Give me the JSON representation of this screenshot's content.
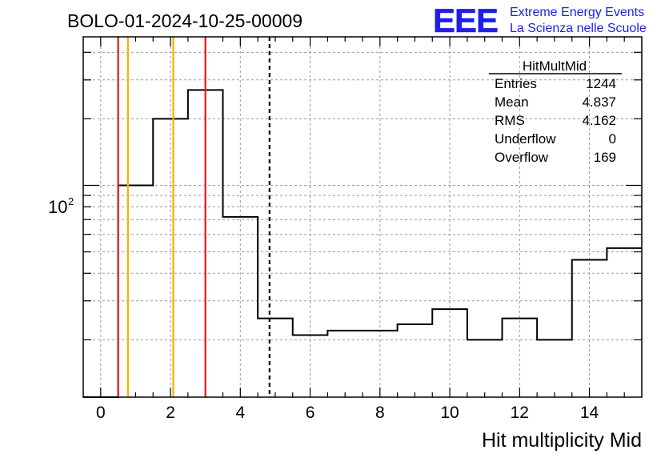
{
  "header": {
    "run_title": "BOLO-01-2024-10-25-00009",
    "logo_letters": "EEE",
    "logo_line1": "Extreme Energy Events",
    "logo_line2": "La Scienza nelle Scuole"
  },
  "stats": {
    "name": "HitMultMid",
    "rows": [
      {
        "label": "Entries",
        "value": "1244"
      },
      {
        "label": "Mean",
        "value": "4.837"
      },
      {
        "label": "RMS",
        "value": "4.162"
      },
      {
        "label": "Underflow",
        "value": "0"
      },
      {
        "label": "Overflow",
        "value": "169"
      }
    ]
  },
  "colors": {
    "histogram": "#000000",
    "red_line": "#e8141b",
    "orange_line": "#f2b200",
    "logo_blue": "#1f1fe6",
    "grid": "#9a9a9a"
  },
  "chart_data": {
    "type": "histogram",
    "xlabel": "Hit multiplicity Mid",
    "ylabel": "",
    "log_y": true,
    "xlim": [
      -0.5,
      15.5
    ],
    "ylim": [
      11,
      470
    ],
    "grid": true,
    "x_ticks": [
      0,
      2,
      4,
      6,
      8,
      10,
      12,
      14
    ],
    "y_tick_label": {
      "base": "10",
      "exponent": "2",
      "value": 100
    },
    "bins": [
      {
        "x": 0,
        "value": 0
      },
      {
        "x": 1,
        "value": 100
      },
      {
        "x": 2,
        "value": 200
      },
      {
        "x": 3,
        "value": 270
      },
      {
        "x": 4,
        "value": 72
      },
      {
        "x": 5,
        "value": 25
      },
      {
        "x": 6,
        "value": 21
      },
      {
        "x": 7,
        "value": 22
      },
      {
        "x": 8,
        "value": 22
      },
      {
        "x": 9,
        "value": 23.5
      },
      {
        "x": 10,
        "value": 27.5
      },
      {
        "x": 11,
        "value": 20
      },
      {
        "x": 12,
        "value": 25
      },
      {
        "x": 13,
        "value": 20
      },
      {
        "x": 14,
        "value": 46
      },
      {
        "x": 15,
        "value": 52
      }
    ],
    "vertical_lines": [
      {
        "x": 0.5,
        "color": "red",
        "style": "solid"
      },
      {
        "x": 0.78,
        "color": "orange",
        "style": "solid"
      },
      {
        "x": 2.08,
        "color": "orange",
        "style": "solid"
      },
      {
        "x": 3.0,
        "color": "red",
        "style": "solid"
      },
      {
        "x": 4.837,
        "color": "black",
        "style": "dashed"
      }
    ]
  }
}
